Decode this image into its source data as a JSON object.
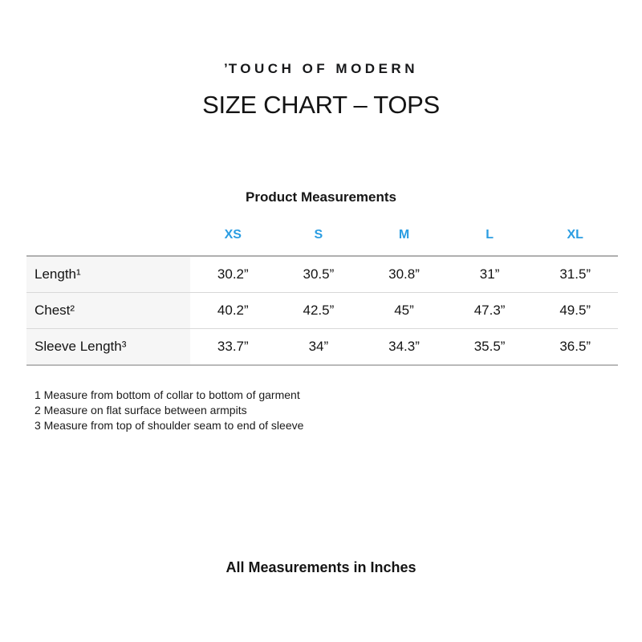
{
  "brand": {
    "logo_mark": "ʼ",
    "logo_text": "TOUCH OF MODERN"
  },
  "title": "SIZE CHART – TOPS",
  "section": {
    "heading": "Product Measurements"
  },
  "table": {
    "columns": [
      "XS",
      "S",
      "M",
      "L",
      "XL"
    ],
    "rows": [
      {
        "label": "Length¹",
        "values": [
          "30.2”",
          "30.5”",
          "30.8”",
          "31”",
          "31.5”"
        ]
      },
      {
        "label": "Chest²",
        "values": [
          "40.2”",
          "42.5”",
          "45”",
          "47.3”",
          "49.5”"
        ]
      },
      {
        "label": "Sleeve Length³",
        "values": [
          "33.7”",
          "34”",
          "34.3”",
          "35.5”",
          "36.5”"
        ]
      }
    ]
  },
  "footnotes": [
    "1 Measure from bottom of collar to bottom of garment",
    "2 Measure on flat surface between armpits",
    "3 Measure from top of shoulder seam to end of sleeve"
  ],
  "footer_note": "All Measurements in Inches",
  "colors": {
    "accent_blue": "#2b9de2"
  }
}
